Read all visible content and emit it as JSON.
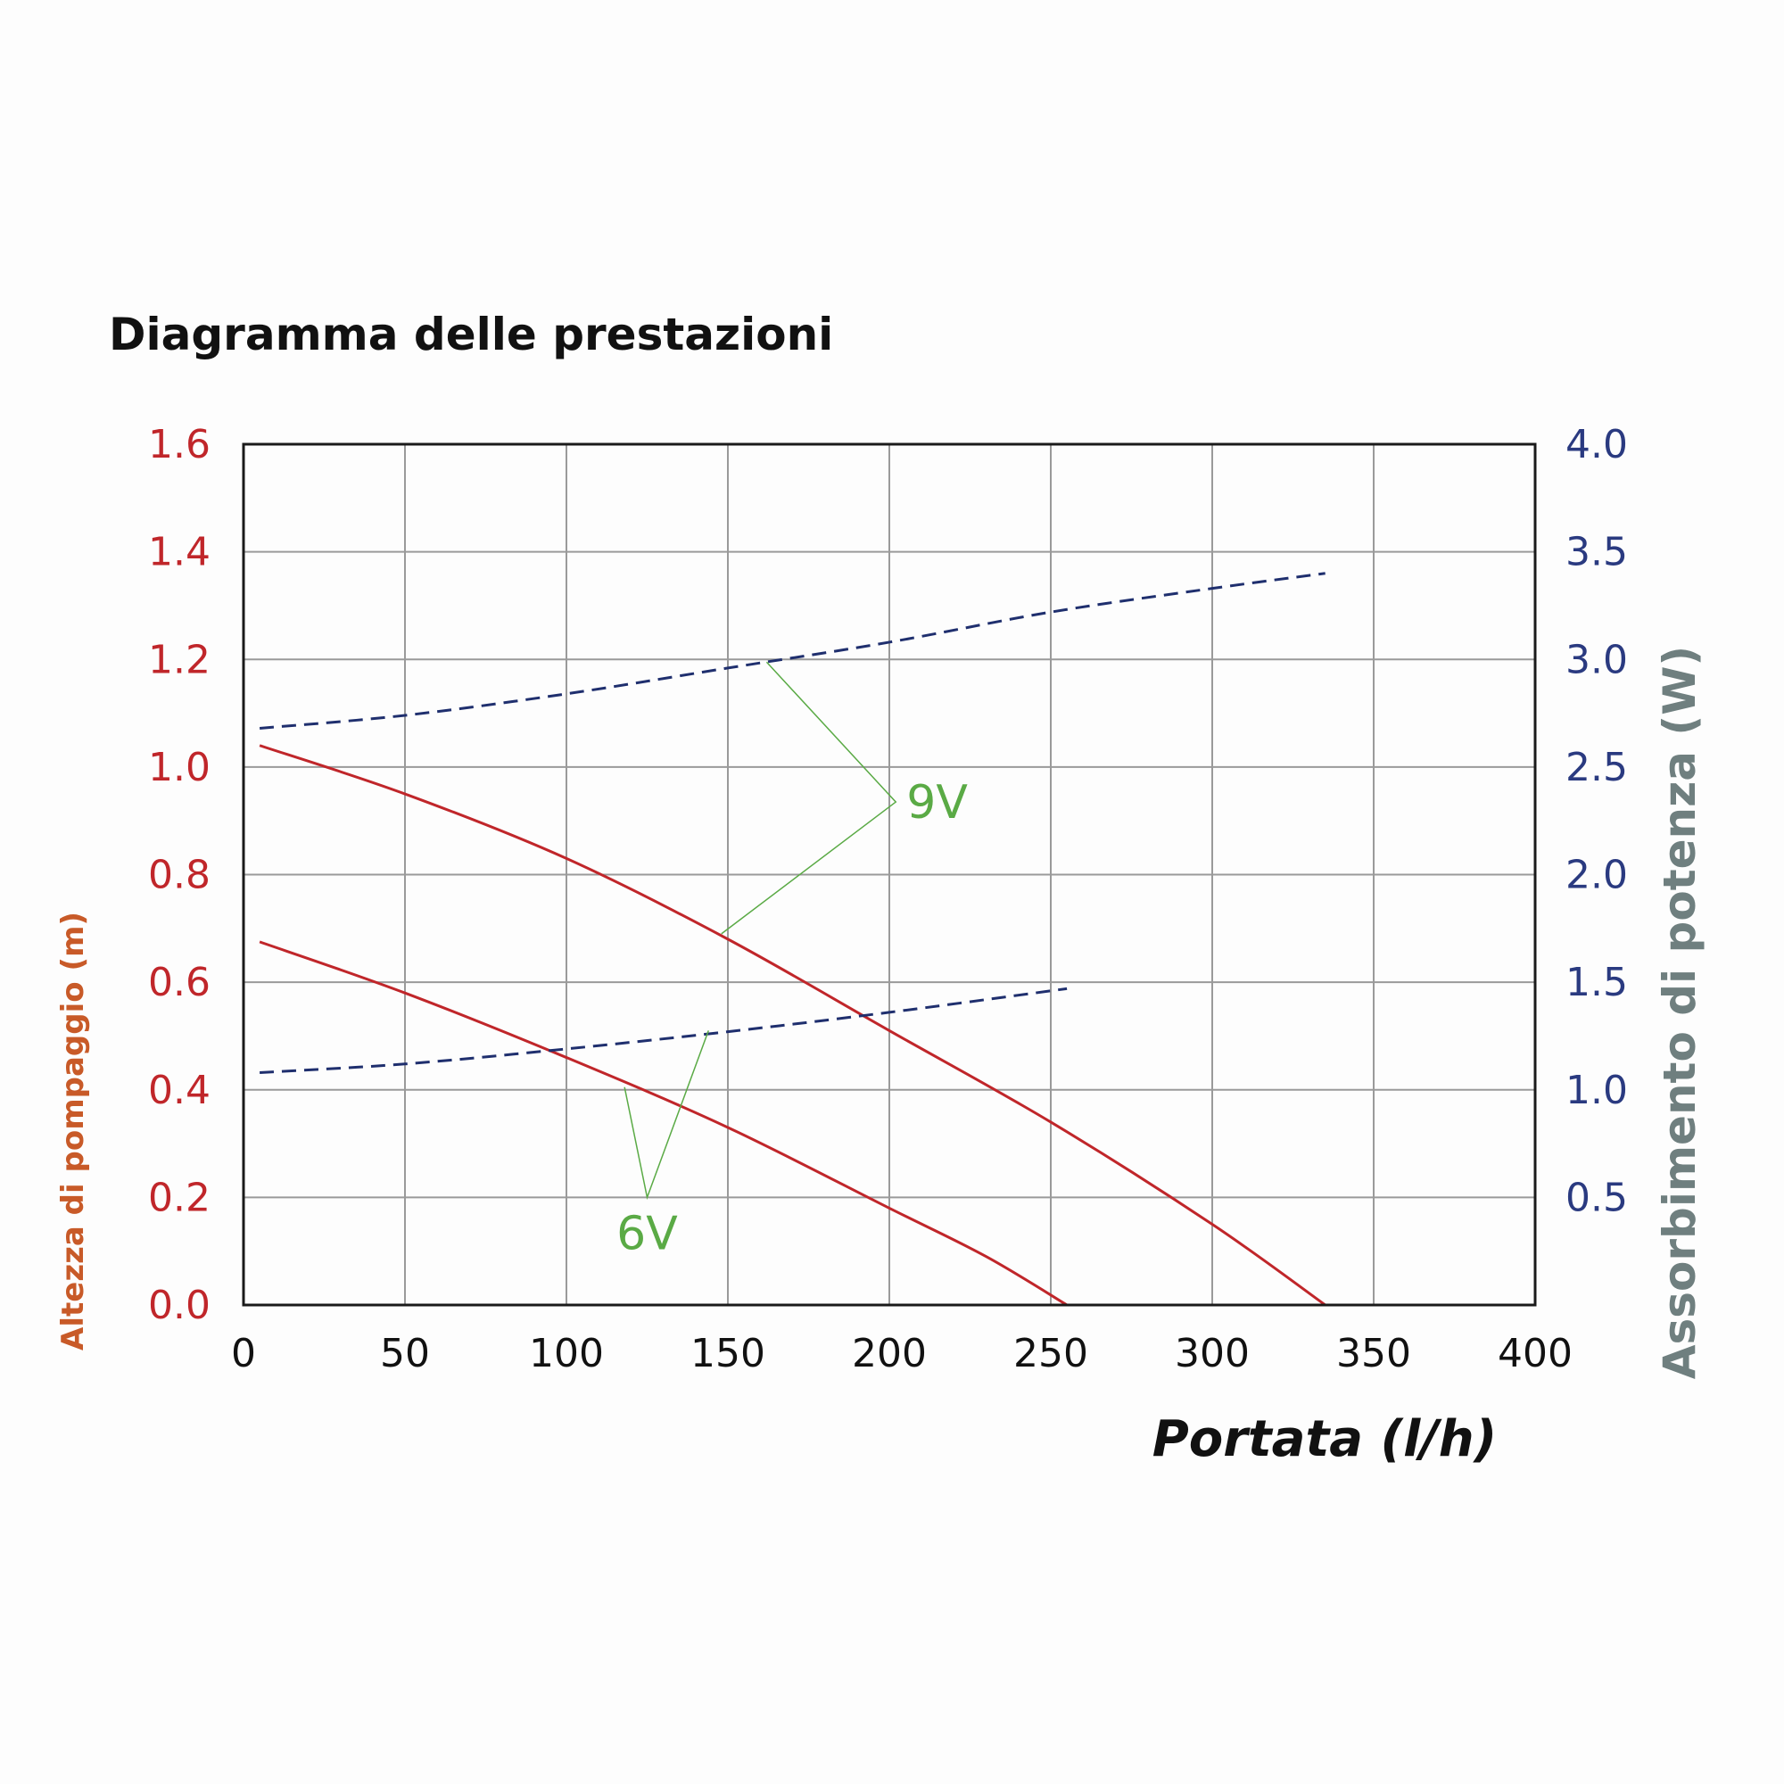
{
  "chart_data": {
    "type": "line",
    "title": "Diagramma delle prestazioni",
    "xlabel": "Portata (l/h)",
    "ylabel_left": "Altezza di pompaggio (m)",
    "ylabel_right": "Assorbimento di potenza (W)",
    "xlim": [
      0,
      400
    ],
    "ylim_left": [
      0,
      1.6
    ],
    "ylim_right": [
      0,
      4.0
    ],
    "x_ticks": [
      "0",
      "50",
      "100",
      "150",
      "200",
      "250",
      "300",
      "350",
      "400"
    ],
    "y_left_ticks": [
      "0.0",
      "0.2",
      "0.4",
      "0.6",
      "0.8",
      "1.0",
      "1.2",
      "1.4",
      "1.6"
    ],
    "y_right_ticks": [
      "0.5",
      "1.0",
      "1.5",
      "2.0",
      "2.5",
      "3.0",
      "3.5",
      "4.0"
    ],
    "grid": true,
    "colors": {
      "head": "#c0262a",
      "power": "#1f2f6e",
      "annotation": "#5aaa45",
      "left_tick": "#c0262a",
      "left_label": "#c85a28",
      "right_tick": "#2a3a80",
      "right_label": "#6f7f7f",
      "grid": "#9a9a9a",
      "frame": "#1a1a1a"
    },
    "series": [
      {
        "axis": "left",
        "style": "solid",
        "color": "#c0262a",
        "x": [
          5,
          50,
          100,
          150,
          200,
          250,
          300,
          335
        ],
        "y": [
          1.04,
          0.95,
          0.83,
          0.68,
          0.51,
          0.34,
          0.15,
          0.0
        ]
      },
      {
        "axis": "left",
        "style": "solid",
        "color": "#c0262a",
        "x": [
          5,
          50,
          100,
          150,
          200,
          230,
          255
        ],
        "y": [
          0.675,
          0.58,
          0.46,
          0.33,
          0.18,
          0.09,
          0.0
        ]
      },
      {
        "axis": "right",
        "style": "dashed",
        "color": "#1f2f6e",
        "x": [
          5,
          50,
          100,
          150,
          200,
          250,
          300,
          335
        ],
        "y": [
          2.68,
          2.74,
          2.84,
          2.96,
          3.08,
          3.22,
          3.33,
          3.4
        ]
      },
      {
        "axis": "right",
        "style": "dashed",
        "color": "#1f2f6e",
        "x": [
          5,
          50,
          100,
          150,
          200,
          255
        ],
        "y": [
          1.08,
          1.12,
          1.19,
          1.27,
          1.36,
          1.47
        ]
      }
    ],
    "annotations": [
      {
        "text": "9V",
        "label_at": [
          202,
          0.935
        ],
        "pointer": [
          [
            162,
            1.195
          ],
          [
            202,
            0.935
          ],
          [
            148,
            0.69
          ]
        ]
      },
      {
        "text": "6V",
        "label_at": [
          125,
          0.2
        ],
        "pointer": [
          [
            118,
            0.405
          ],
          [
            125,
            0.2
          ],
          [
            144,
            0.51
          ]
        ]
      }
    ]
  }
}
